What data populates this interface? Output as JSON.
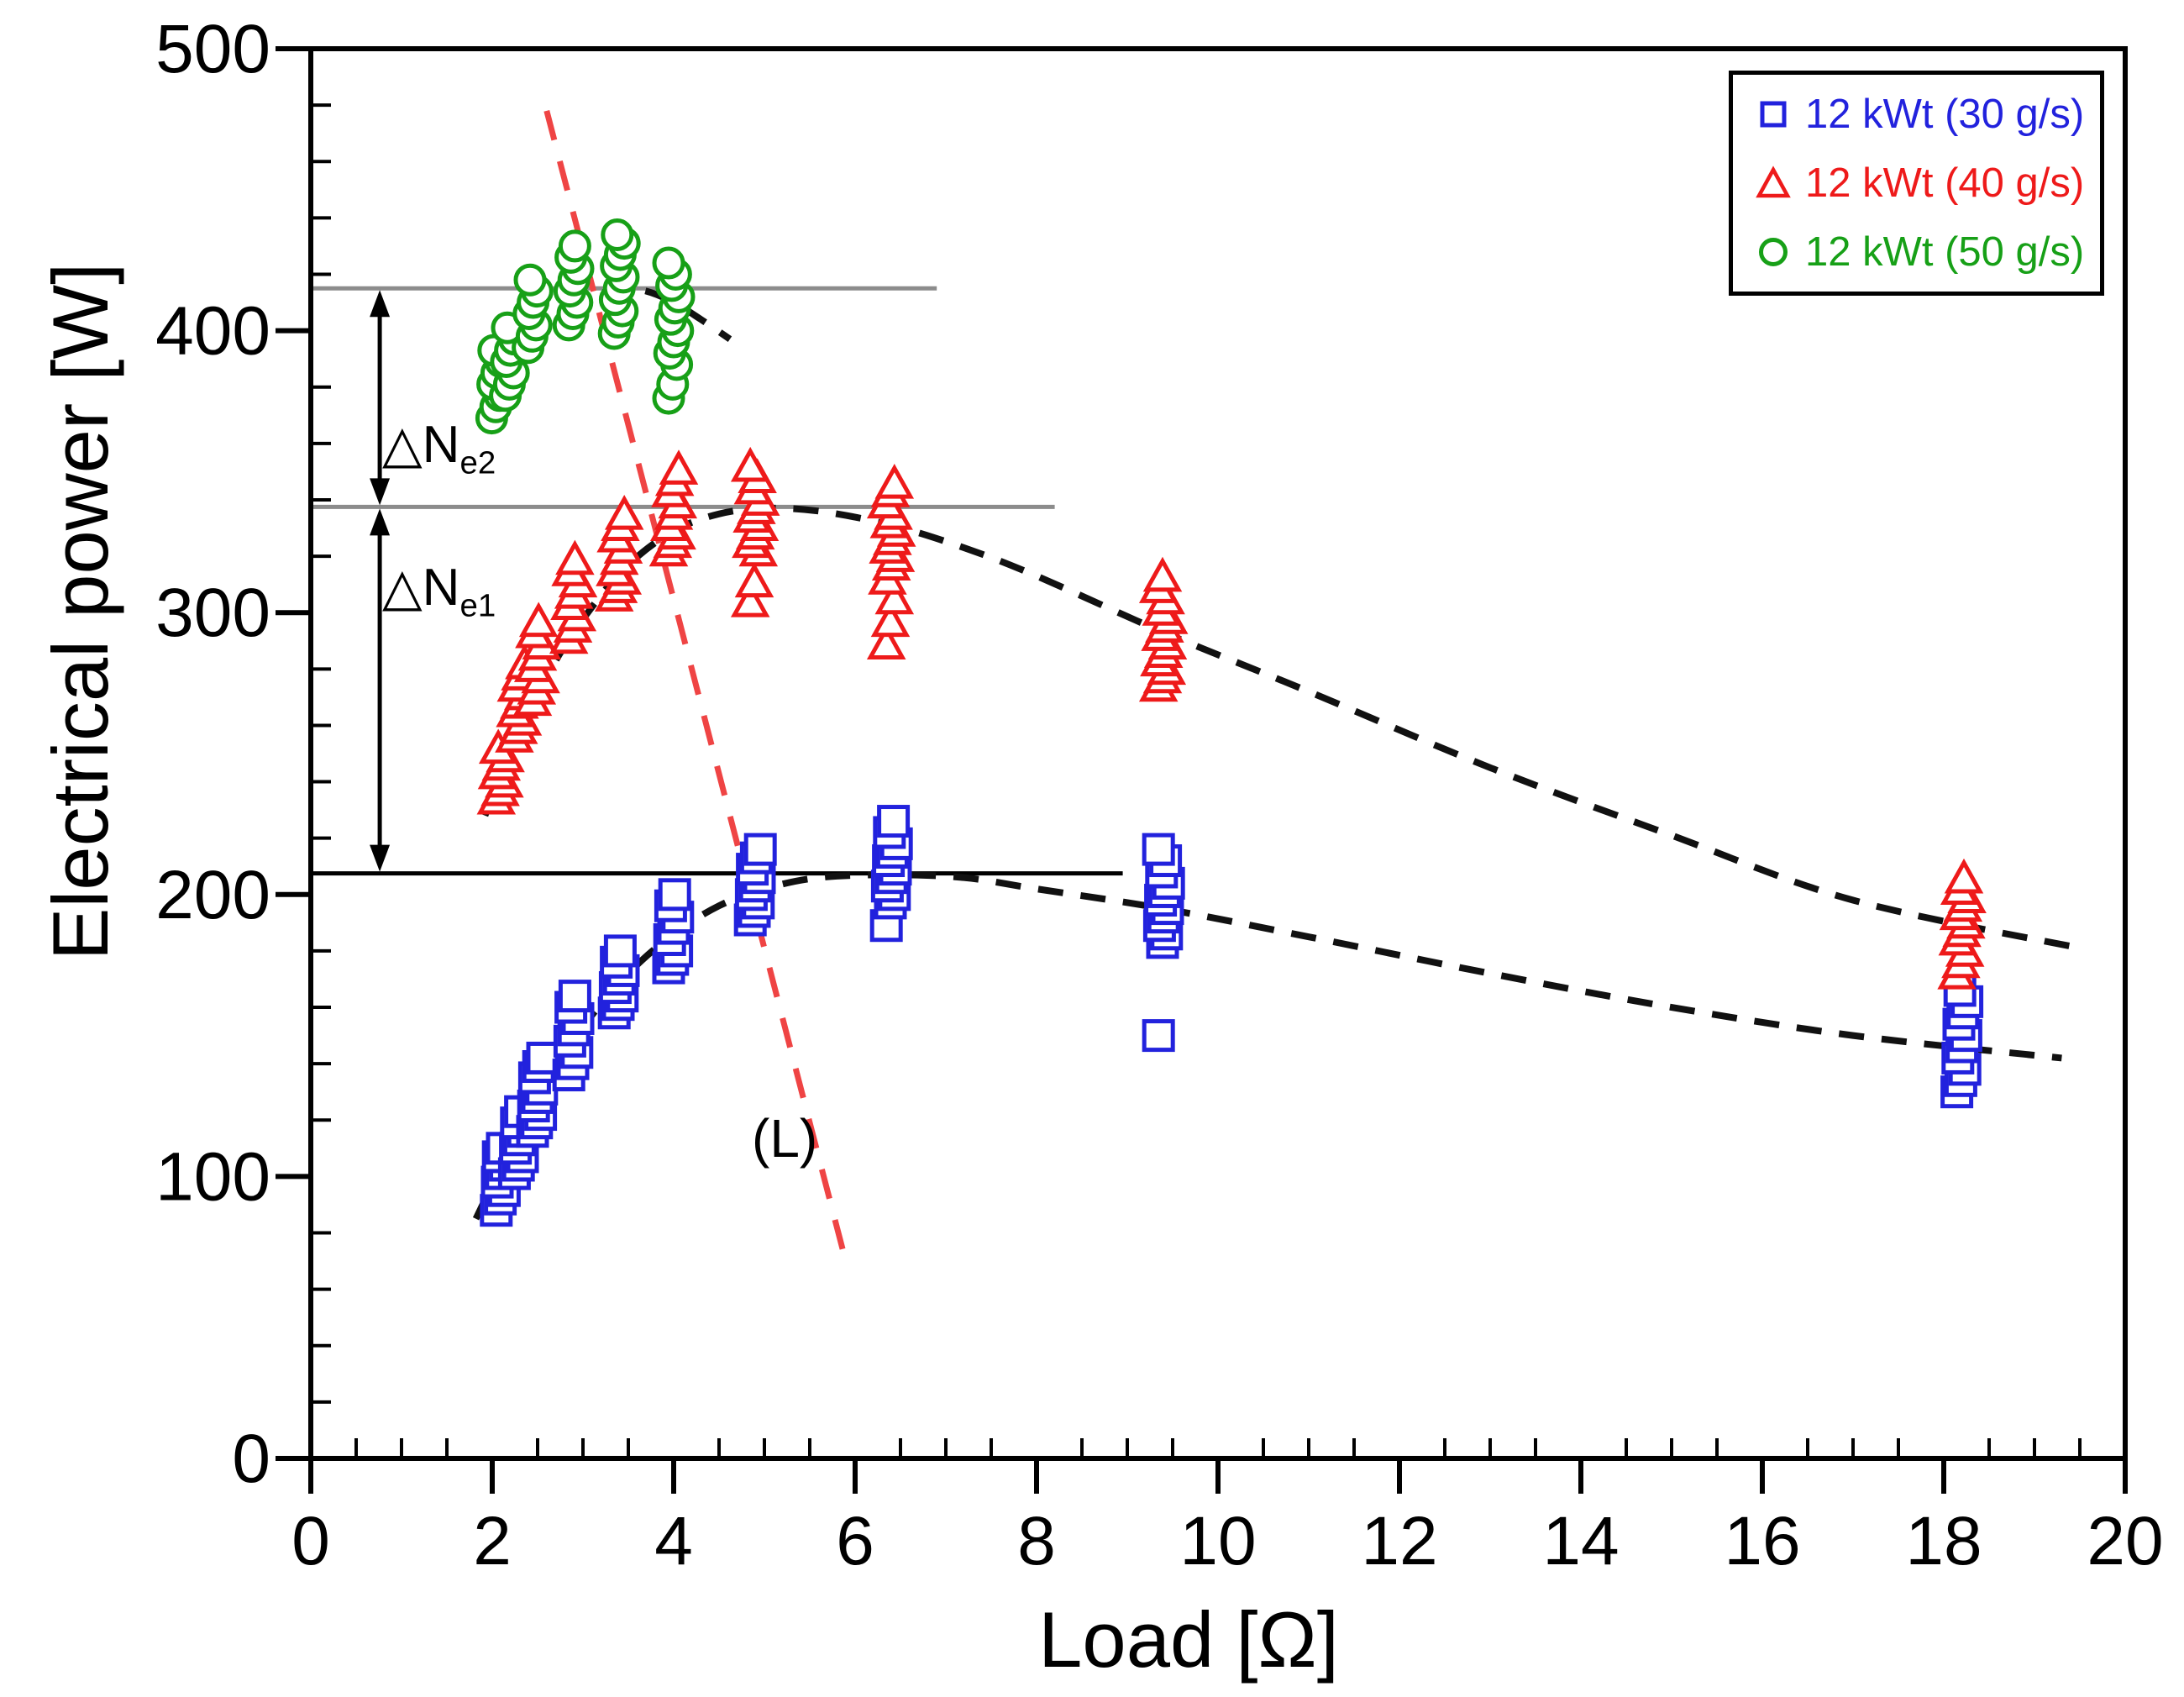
{
  "chart_data": {
    "type": "scatter",
    "xlabel": "Load [Ω]",
    "ylabel": "Electrical power [W]",
    "xlim": [
      0,
      20
    ],
    "ylim": [
      0,
      500
    ],
    "x_ticks": [
      0,
      2,
      4,
      6,
      8,
      10,
      12,
      14,
      16,
      18,
      20
    ],
    "y_ticks": [
      0,
      100,
      200,
      300,
      400,
      500
    ],
    "x_minor_step": 0.5,
    "y_minor_step": 20,
    "grid": false,
    "legend_position": "top-right",
    "series": [
      {
        "name": "12 kWt (30 g/s)",
        "marker": "square",
        "color": "#2222dd",
        "clusters": [
          {
            "load": 2.1,
            "values": [
              88,
              92,
              95,
              98,
              101,
              104,
              107,
              110
            ]
          },
          {
            "load": 2.3,
            "values": [
              101,
              104,
              107,
              110,
              113,
              116,
              119,
              123
            ]
          },
          {
            "load": 2.5,
            "values": [
              116,
              119,
              122,
              125,
              128,
              131,
              135,
              139,
              142
            ]
          },
          {
            "load": 2.9,
            "values": [
              136,
              140,
              144,
              148,
              152,
              156,
              160,
              164
            ]
          },
          {
            "load": 3.4,
            "values": [
              158,
              161,
              164,
              167,
              170,
              173,
              176,
              180
            ]
          },
          {
            "load": 4.0,
            "values": [
              174,
              177,
              180,
              184,
              188,
              192,
              196,
              200
            ]
          },
          {
            "load": 4.9,
            "values": [
              191,
              194,
              197,
              200,
              203,
              206,
              209,
              213,
              216
            ]
          },
          {
            "load": 6.4,
            "values": [
              189,
              197,
              200,
              203,
              206,
              209,
              212,
              215,
              218,
              222,
              226
            ]
          },
          {
            "load": 9.4,
            "values": [
              150,
              183,
              186,
              189,
              192,
              195,
              198,
              201,
              204,
              208,
              212,
              216
            ]
          },
          {
            "load": 18.2,
            "values": [
              130,
              134,
              138,
              142,
              146,
              150,
              154,
              158,
              162,
              166
            ]
          }
        ]
      },
      {
        "name": "12 kWt (40 g/s)",
        "marker": "triangle",
        "color": "#ee1a1a",
        "clusters": [
          {
            "load": 2.1,
            "values": [
              233,
              236,
              239,
              242,
              245,
              248,
              251
            ]
          },
          {
            "load": 2.3,
            "values": [
              255,
              258,
              261,
              264,
              267,
              270,
              273,
              277,
              281
            ]
          },
          {
            "load": 2.5,
            "values": [
              268,
              272,
              276,
              280,
              284,
              288,
              292,
              296
            ]
          },
          {
            "load": 2.9,
            "values": [
              290,
              294,
              298,
              302,
              306,
              310,
              314,
              318
            ]
          },
          {
            "load": 3.4,
            "values": [
              305,
              308,
              311,
              314,
              318,
              322,
              326,
              330,
              334
            ]
          },
          {
            "load": 4.0,
            "values": [
              321,
              324,
              327,
              330,
              334,
              338,
              342,
              346,
              350
            ]
          },
          {
            "load": 4.9,
            "values": [
              303,
              310,
              321,
              324,
              327,
              330,
              333,
              336,
              339,
              343,
              347,
              351
            ]
          },
          {
            "load": 6.4,
            "values": [
              288,
              296,
              304,
              311,
              316,
              319,
              322,
              325,
              328,
              331,
              334,
              338,
              342,
              345
            ]
          },
          {
            "load": 9.4,
            "values": [
              273,
              276,
              279,
              282,
              285,
              288,
              291,
              294,
              297,
              300,
              304,
              308,
              312
            ]
          },
          {
            "load": 18.2,
            "values": [
              171,
              175,
              179,
              183,
              186,
              189,
              192,
              195,
              198,
              201,
              205
            ]
          }
        ]
      },
      {
        "name": "12 kWt (50 g/s)",
        "marker": "circle",
        "color": "#17a017",
        "clusters": [
          {
            "load": 2.05,
            "values": [
              369,
              373,
              377,
              381,
              385,
              389,
              393
            ]
          },
          {
            "load": 2.2,
            "values": [
              377,
              381,
              385,
              389,
              393,
              397,
              401
            ]
          },
          {
            "load": 2.45,
            "values": [
              394,
              398,
              402,
              406,
              410,
              414,
              418
            ]
          },
          {
            "load": 2.9,
            "values": [
              402,
              406,
              410,
              414,
              418,
              422,
              426,
              430
            ]
          },
          {
            "load": 3.4,
            "values": [
              399,
              403,
              407,
              411,
              415,
              419,
              423,
              427,
              431,
              434
            ]
          },
          {
            "load": 4.0,
            "values": [
              376,
              381,
              388,
              392,
              396,
              400,
              404,
              408,
              412,
              416,
              420,
              424
            ]
          }
        ]
      }
    ],
    "trend_lines": [
      {
        "series": "12 kWt (30 g/s)",
        "color": "#111111",
        "points": [
          [
            1.82,
            85
          ],
          [
            2.2,
            110
          ],
          [
            2.6,
            132
          ],
          [
            3.0,
            153
          ],
          [
            3.5,
            172
          ],
          [
            4.0,
            186
          ],
          [
            4.5,
            196
          ],
          [
            5.0,
            202
          ],
          [
            5.6,
            206
          ],
          [
            6.4,
            207
          ],
          [
            7.2,
            206
          ],
          [
            8.0,
            202
          ],
          [
            9.4,
            195
          ],
          [
            11,
            185
          ],
          [
            13,
            172
          ],
          [
            15,
            160
          ],
          [
            17,
            150
          ],
          [
            19.3,
            142
          ]
        ]
      },
      {
        "series": "12 kWt (40 g/s)",
        "color": "#111111",
        "points": [
          [
            1.92,
            228
          ],
          [
            2.3,
            258
          ],
          [
            2.7,
            283
          ],
          [
            3.1,
            302
          ],
          [
            3.5,
            317
          ],
          [
            4.0,
            329
          ],
          [
            4.5,
            335
          ],
          [
            5.0,
            337
          ],
          [
            5.6,
            336
          ],
          [
            6.4,
            331
          ],
          [
            7.2,
            323
          ],
          [
            8.0,
            313
          ],
          [
            9.4,
            293
          ],
          [
            11,
            272
          ],
          [
            13,
            245
          ],
          [
            15,
            221
          ],
          [
            17,
            198
          ],
          [
            19.5,
            181
          ]
        ]
      },
      {
        "series": "12 kWt (50 g/s)",
        "color": "#111111",
        "points": [
          [
            1.92,
            372
          ],
          [
            2.2,
            388
          ],
          [
            2.5,
            399
          ],
          [
            2.8,
            407
          ],
          [
            3.1,
            412
          ],
          [
            3.4,
            415
          ],
          [
            3.7,
            414
          ],
          [
            4.0,
            410
          ],
          [
            4.3,
            404
          ],
          [
            4.62,
            397
          ]
        ]
      }
    ],
    "load_line": {
      "color": "#ef4444",
      "points": [
        [
          2.6,
          478
        ],
        [
          5.88,
          72
        ]
      ],
      "label": "(L)"
    },
    "reference_lines": [
      {
        "value": 415,
        "x_start": 0,
        "x_end": 6.9,
        "color": "#8c8c8c",
        "width": 5
      },
      {
        "value": 337.5,
        "x_start": 0,
        "x_end": 8.2,
        "color": "#8c8c8c",
        "width": 5
      },
      {
        "value": 207.5,
        "x_start": 0,
        "x_end": 8.95,
        "color": "#000000",
        "width": 5
      }
    ],
    "arrows": [
      {
        "x": 0.76,
        "from": 415,
        "to": 337.5
      },
      {
        "x": 0.76,
        "from": 337.5,
        "to": 207.5
      }
    ],
    "annotations": [
      {
        "id": "delta-ne2",
        "main": "△N",
        "sub": "e2"
      },
      {
        "id": "delta-ne1",
        "main": "△N",
        "sub": "e1"
      },
      {
        "id": "load-line-label",
        "text": "(L)"
      }
    ]
  },
  "legend": {
    "items": [
      {
        "label": "12 kWt (30 g/s)",
        "marker": "square",
        "color": "#2222dd"
      },
      {
        "label": "12 kWt (40 g/s)",
        "marker": "triangle",
        "color": "#ee1a1a"
      },
      {
        "label": "12 kWt (50 g/s)",
        "marker": "circle",
        "color": "#17a017"
      }
    ]
  }
}
